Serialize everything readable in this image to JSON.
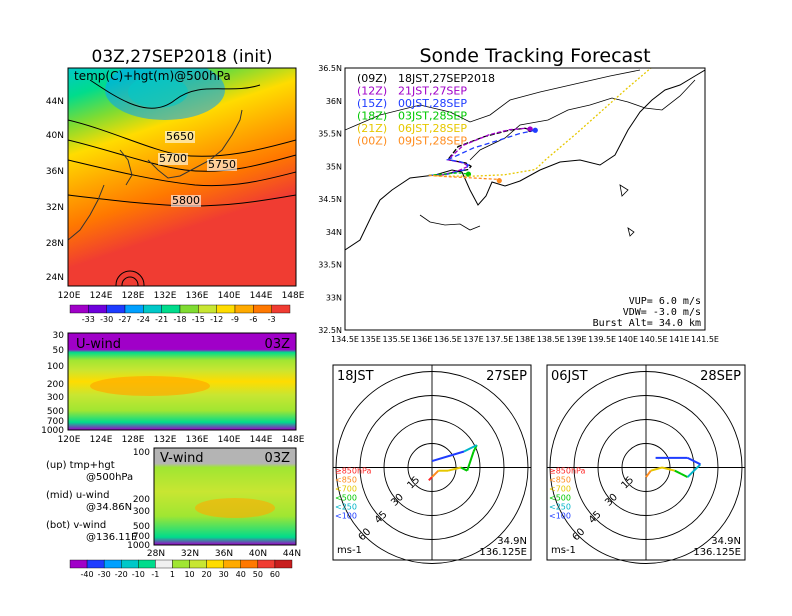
{
  "left_title": "03Z,27SEP2018 (init)",
  "right_title": "Sonde Tracking Forecast",
  "temp_map": {
    "label": "temp(C)+hgt(m)@500hPa",
    "lat_ticks": [
      "44N",
      "40N",
      "36N",
      "32N",
      "28N",
      "24N"
    ],
    "lon_ticks": [
      "120E",
      "124E",
      "128E",
      "132E",
      "136E",
      "140E",
      "144E",
      "148E"
    ],
    "contour_labels": [
      "5650",
      "5700",
      "5750",
      "5800"
    ],
    "colorbar_ticks": [
      "-33",
      "-30",
      "-27",
      "-24",
      "-21",
      "-18",
      "-15",
      "-12",
      "-9",
      "-6",
      "-3"
    ],
    "colorbar_colors": [
      "#a000c8",
      "#6e00dc",
      "#1e3cff",
      "#00a0ff",
      "#00c8c8",
      "#00dc8c",
      "#7fdc32",
      "#c8e632",
      "#ffdc00",
      "#ffaa00",
      "#ff7800",
      "#f03c32"
    ]
  },
  "u_panel": {
    "label": "U-wind",
    "time": "03Z",
    "y_ticks": [
      "30",
      "50",
      "100",
      "200",
      "300",
      "500",
      "700",
      "1000"
    ],
    "x_ticks": [
      "120E",
      "124E",
      "128E",
      "132E",
      "136E",
      "140E",
      "144E",
      "148E"
    ]
  },
  "v_panel": {
    "label": "V-wind",
    "time": "03Z",
    "y_ticks": [
      "100",
      "200",
      "300",
      "500",
      "700",
      "1000"
    ],
    "x_ticks": [
      "28N",
      "32N",
      "36N",
      "40N",
      "44N"
    ]
  },
  "descriptions": [
    {
      "head": "(up) tmp+hgt",
      "sub": "@500hPa"
    },
    {
      "head": "(mid) u-wind",
      "sub": "@34.86N"
    },
    {
      "head": "(bot) v-wind",
      "sub": "@136.11E"
    }
  ],
  "wind_colorbar": {
    "ticks": [
      "-40",
      "-30",
      "-20",
      "-10",
      "-1",
      "1",
      "10",
      "20",
      "30",
      "40",
      "50",
      "60"
    ],
    "colors": [
      "#a000c8",
      "#1e3cff",
      "#00a0ff",
      "#00c8c8",
      "#00dc8c",
      "#f0f0f0",
      "#a0e632",
      "#c8e632",
      "#ffdc00",
      "#ffaa00",
      "#ff7800",
      "#f03c32",
      "#c81e1e"
    ]
  },
  "tracking_map": {
    "lat_ticks": [
      "36.5N",
      "36N",
      "35.5N",
      "35N",
      "34.5N",
      "34N",
      "33.5N",
      "33N",
      "32.5N"
    ],
    "lon_ticks": [
      "134.5E",
      "135E",
      "135.5E",
      "136E",
      "136.5E",
      "137E",
      "137.5E",
      "138E",
      "138.5E",
      "139E",
      "139.5E",
      "140E",
      "140.5E",
      "141E",
      "141.5E"
    ],
    "legend": [
      {
        "run": "(09Z)",
        "time": "18JST,27SEP2018",
        "color": "#000000"
      },
      {
        "run": "(12Z)",
        "time": "21JST,27SEP",
        "color": "#a000c8"
      },
      {
        "run": "(15Z)",
        "time": "00JST,28SEP",
        "color": "#1e3cff"
      },
      {
        "run": "(18Z)",
        "time": "03JST,28SEP",
        "color": "#00c800"
      },
      {
        "run": "(21Z)",
        "time": "06JST,28SEP",
        "color": "#e6c800"
      },
      {
        "run": "(00Z)",
        "time": "09JST,28SEP",
        "color": "#ff8c1e"
      }
    ],
    "params": [
      "VUP=  6.0 m/s",
      "VDW= -3.0 m/s",
      "Burst Alt= 34.0 km"
    ]
  },
  "hodographs": [
    {
      "time": "18JST",
      "date": "27SEP",
      "lat": "34.9N",
      "lon": "136.125E",
      "unit": "ms-1",
      "ring_labels": [
        "15",
        "30",
        "45",
        "60"
      ]
    },
    {
      "time": "06JST",
      "date": "28SEP",
      "lat": "34.9N",
      "lon": "136.125E",
      "unit": "ms-1",
      "ring_labels": [
        "15",
        "30",
        "45",
        "60"
      ]
    }
  ],
  "hodo_legend": [
    {
      "label": "≥850hPa",
      "color": "#ff2828"
    },
    {
      "label": "<850",
      "color": "#ff8c1e"
    },
    {
      "label": "<700",
      "color": "#e6c800"
    },
    {
      "label": "<500",
      "color": "#00c800"
    },
    {
      "label": "<250",
      "color": "#00b4c8"
    },
    {
      "label": "<100",
      "color": "#1e3cff"
    }
  ],
  "chart_data": {
    "type": "line",
    "title": "Sonde Tracking Forecast",
    "xlabel": "",
    "ylabel": "",
    "xlim": [
      134.5,
      141.5
    ],
    "ylim": [
      32.5,
      36.5
    ],
    "series": [
      {
        "name": "(09Z) 18JST,27SEP2018",
        "x": [
          136.13,
          136.4,
          136.7,
          136.9,
          136.95,
          136.85,
          136.5,
          136.7,
          137.2,
          137.7,
          138.0,
          138.1
        ],
        "y": [
          34.86,
          34.87,
          34.92,
          34.95,
          35.0,
          35.05,
          35.1,
          35.3,
          35.45,
          35.55,
          35.58,
          35.56
        ]
      },
      {
        "name": "(12Z) 21JST,27SEP",
        "x": [
          136.13,
          136.4,
          136.7,
          136.9,
          136.8,
          136.5,
          136.8,
          137.3,
          137.7,
          138.0,
          138.1
        ],
        "y": [
          34.86,
          34.87,
          34.93,
          35.0,
          35.05,
          35.1,
          35.32,
          35.48,
          35.56,
          35.58,
          35.57
        ]
      },
      {
        "name": "(15Z) 00JST,28SEP",
        "x": [
          136.13,
          136.5,
          136.85,
          136.9,
          136.75,
          136.5,
          137.0,
          137.5,
          137.9,
          138.2
        ],
        "y": [
          34.86,
          34.88,
          34.95,
          35.02,
          35.07,
          35.1,
          35.28,
          35.4,
          35.5,
          35.55
        ]
      },
      {
        "name": "(18Z) 03JST,28SEP",
        "x": [
          136.13,
          136.4,
          136.7,
          136.9
        ],
        "y": [
          34.86,
          34.88,
          34.9,
          34.88
        ]
      },
      {
        "name": "(21Z) 06JST,28SEP",
        "x": [
          136.13,
          136.5,
          137.0,
          137.6,
          138.2,
          138.4,
          139.0,
          140.0,
          141.5
        ],
        "y": [
          34.86,
          34.85,
          34.85,
          34.87,
          34.95,
          35.1,
          35.5,
          36.2,
          37.2
        ]
      },
      {
        "name": "(00Z) 09JST,28SEP",
        "x": [
          136.13,
          136.5,
          137.0,
          137.5,
          137.5
        ],
        "y": [
          34.86,
          34.84,
          34.82,
          34.8,
          34.78
        ]
      }
    ]
  }
}
